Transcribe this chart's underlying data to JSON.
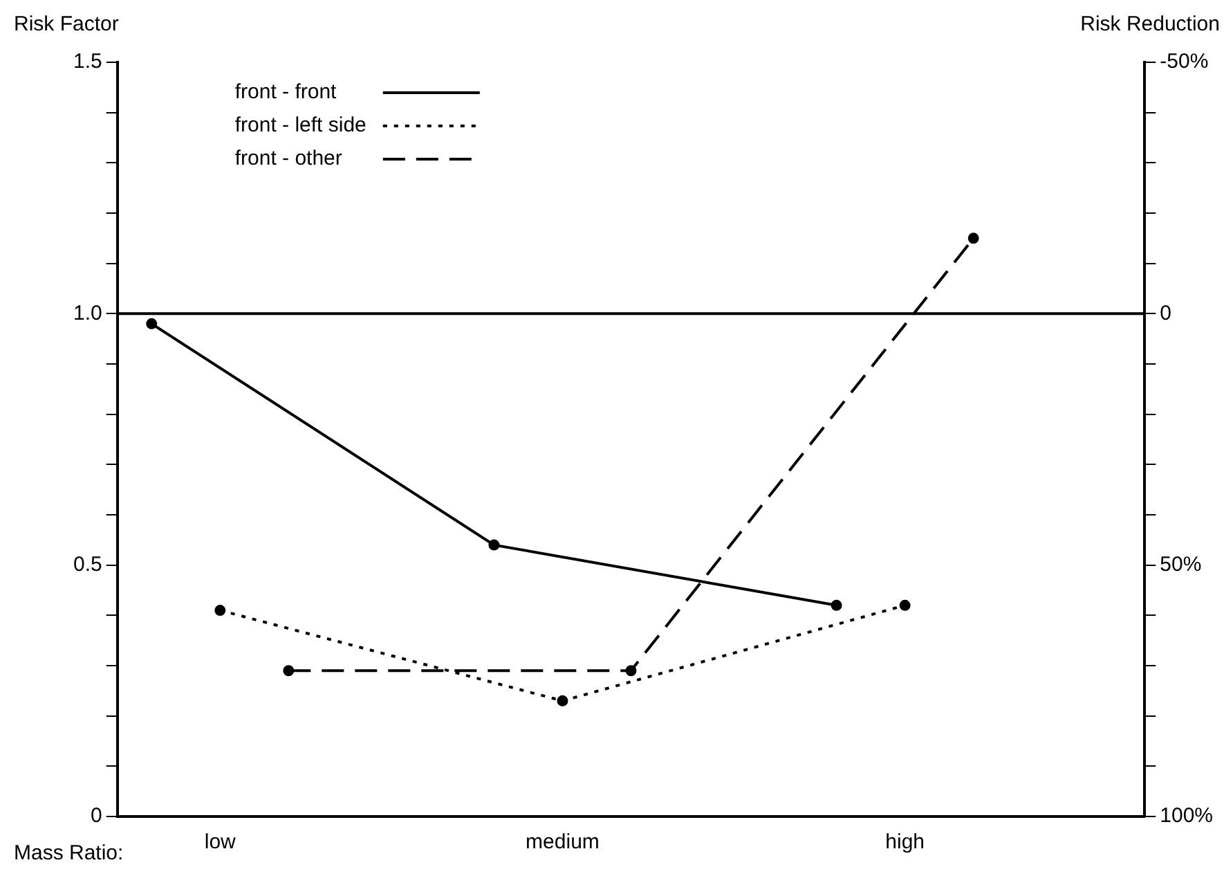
{
  "chart_data": {
    "type": "line",
    "ylabel": "Risk Factor",
    "y2label": "Risk Reduction",
    "xlabel": "Mass Ratio:",
    "categories": [
      null,
      "low",
      null,
      null,
      null,
      null,
      "medium",
      null,
      null,
      null,
      null,
      "high",
      null,
      null,
      null
    ],
    "ylim": [
      0,
      1.5
    ],
    "yticks": [
      0,
      {
        "value": 0.1,
        "label": null
      },
      {
        "value": 0.2,
        "label": null
      },
      {
        "value": 0.3,
        "label": null
      },
      {
        "value": 0.4,
        "label": null
      },
      0.5,
      {
        "value": 0.6,
        "label": null
      },
      {
        "value": 0.7,
        "label": null
      },
      {
        "value": 0.8,
        "label": null
      },
      {
        "value": 0.9,
        "label": null
      },
      {
        "value": 1,
        "label": "1.0"
      },
      {
        "value": 1.1,
        "label": null
      },
      {
        "value": 1.2,
        "label": null
      },
      {
        "value": 1.3,
        "label": null
      },
      {
        "value": 1.4,
        "label": null
      },
      1.5
    ],
    "y2lim": [
      100,
      -50
    ],
    "y2ticks": [
      {
        "value": -50,
        "label": "-50%"
      },
      {
        "value": -40,
        "label": null
      },
      {
        "value": -30,
        "label": null
      },
      {
        "value": -20,
        "label": null
      },
      {
        "value": -10,
        "label": null
      },
      0,
      {
        "value": 10,
        "label": null
      },
      {
        "value": 20,
        "label": null
      },
      {
        "value": 30,
        "label": null
      },
      {
        "value": 40,
        "label": null
      },
      {
        "value": 50,
        "label": "50%"
      },
      {
        "value": 60,
        "label": null
      },
      {
        "value": 70,
        "label": null
      },
      {
        "value": 80,
        "label": null
      },
      {
        "value": 90,
        "label": null
      },
      {
        "value": 100,
        "label": "100%"
      }
    ],
    "series": [
      {
        "name": "front - front",
        "color": "#000000",
        "line_style": "solid",
        "values": [
          0.98,
          null,
          null,
          null,
          null,
          0.54,
          null,
          null,
          null,
          null,
          0.42,
          null,
          null,
          null,
          null
        ]
      },
      {
        "name": "front - left side",
        "color": "#000000",
        "line_style": "dotted",
        "values": [
          null,
          0.41,
          null,
          null,
          null,
          null,
          0.23,
          null,
          null,
          null,
          null,
          0.42,
          null,
          null,
          null
        ]
      },
      {
        "name": "front - other",
        "color": "#000000",
        "line_style": "dashed",
        "values": [
          null,
          null,
          0.29,
          null,
          null,
          null,
          null,
          0.29,
          null,
          null,
          null,
          null,
          1.15,
          null,
          null
        ]
      }
    ],
    "ref_lines": [
      {
        "axis": "y",
        "value": 1.0,
        "color": "#000000"
      }
    ],
    "marker": "circle",
    "grid": false,
    "legend": "top left"
  }
}
